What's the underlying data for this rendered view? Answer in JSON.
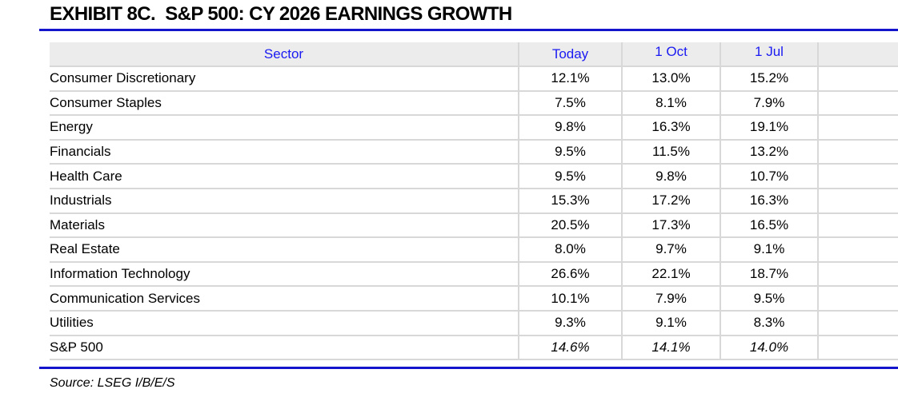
{
  "title": "EXHIBIT 8C.  S&P 500: CY 2026 EARNINGS GROWTH",
  "source": "Source: LSEG I/B/E/S",
  "colors": {
    "accent_rule_blue": "#1414cc",
    "header_text_blue": "#1a1af2",
    "header_bg": "#ececec",
    "gridline": "#d8d8d8",
    "body_text": "#000000"
  },
  "table": {
    "columns": [
      "Sector",
      "Today",
      "1 Oct",
      "1 Jul"
    ],
    "rows": [
      {
        "cells": [
          "Consumer Discretionary",
          "12.1%",
          "13.0%",
          "15.2%"
        ],
        "italic_values": false
      },
      {
        "cells": [
          "Consumer Staples",
          "7.5%",
          "8.1%",
          "7.9%"
        ],
        "italic_values": false
      },
      {
        "cells": [
          "Energy",
          "9.8%",
          "16.3%",
          "19.1%"
        ],
        "italic_values": false
      },
      {
        "cells": [
          "Financials",
          "9.5%",
          "11.5%",
          "13.2%"
        ],
        "italic_values": false
      },
      {
        "cells": [
          "Health Care",
          "9.5%",
          "9.8%",
          "10.7%"
        ],
        "italic_values": false
      },
      {
        "cells": [
          "Industrials",
          "15.3%",
          "17.2%",
          "16.3%"
        ],
        "italic_values": false
      },
      {
        "cells": [
          "Materials",
          "20.5%",
          "17.3%",
          "16.5%"
        ],
        "italic_values": false
      },
      {
        "cells": [
          "Real Estate",
          "8.0%",
          "9.7%",
          "9.1%"
        ],
        "italic_values": false
      },
      {
        "cells": [
          "Information Technology",
          "26.6%",
          "22.1%",
          "18.7%"
        ],
        "italic_values": false
      },
      {
        "cells": [
          "Communication Services",
          "10.1%",
          "7.9%",
          "9.5%"
        ],
        "italic_values": false
      },
      {
        "cells": [
          "Utilities",
          "9.3%",
          "9.1%",
          "8.3%"
        ],
        "italic_values": false
      },
      {
        "cells": [
          "S&P 500",
          "14.6%",
          "14.1%",
          "14.0%"
        ],
        "italic_values": true
      }
    ]
  },
  "chart_data": {
    "type": "table",
    "title": "EXHIBIT 8C.  S&P 500: CY 2026 EARNINGS GROWTH",
    "categories": [
      "Consumer Discretionary",
      "Consumer Staples",
      "Energy",
      "Financials",
      "Health Care",
      "Industrials",
      "Materials",
      "Real Estate",
      "Information Technology",
      "Communication Services",
      "Utilities",
      "S&P 500"
    ],
    "series": [
      {
        "name": "Today",
        "values": [
          12.1,
          7.5,
          9.8,
          9.5,
          9.5,
          15.3,
          20.5,
          8.0,
          26.6,
          10.1,
          9.3,
          14.6
        ]
      },
      {
        "name": "1 Oct",
        "values": [
          13.0,
          8.1,
          16.3,
          11.5,
          9.8,
          17.2,
          17.3,
          9.7,
          22.1,
          7.9,
          9.1,
          14.1
        ]
      },
      {
        "name": "1 Jul",
        "values": [
          15.2,
          7.9,
          19.1,
          13.2,
          10.7,
          16.3,
          16.5,
          9.1,
          18.7,
          9.5,
          8.3,
          14.0
        ]
      }
    ],
    "unit": "%",
    "source": "Source: LSEG I/B/E/S"
  }
}
